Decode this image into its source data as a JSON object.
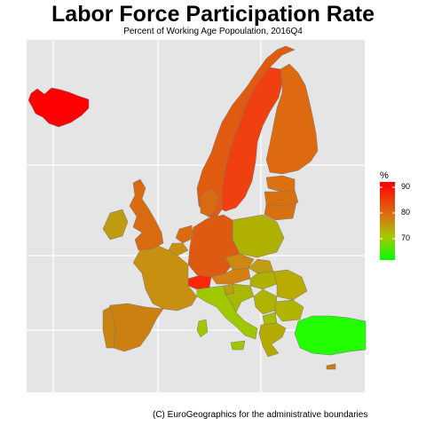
{
  "title": "Labor Force Participation Rate",
  "subtitle": "Percent of Working Age Popoulation, 2016Q4",
  "caption": "(C) EuroGeographics for the administrative boundaries",
  "legend": {
    "title": "%",
    "ticks": [
      "90",
      "80",
      "70"
    ],
    "tick_values": [
      90,
      80,
      70
    ],
    "range": [
      62,
      91
    ],
    "colors": [
      "#00ff00",
      "#ff0000"
    ]
  },
  "panel_color": "#e5e5e5",
  "countries": [
    {
      "name": "Iceland",
      "color": "#ff0000"
    },
    {
      "name": "Sweden",
      "color": "#f04010"
    },
    {
      "name": "Norway",
      "color": "#e05a10"
    },
    {
      "name": "Finland",
      "color": "#dd6a10"
    },
    {
      "name": "Switzerland",
      "color": "#ff2800"
    },
    {
      "name": "Germany",
      "color": "#dd5a10"
    },
    {
      "name": "Denmark",
      "color": "#d86a10"
    },
    {
      "name": "Netherlands",
      "color": "#dd6a10"
    },
    {
      "name": "United Kingdom",
      "color": "#d86a10"
    },
    {
      "name": "Ireland",
      "color": "#c09a10"
    },
    {
      "name": "France",
      "color": "#c89010"
    },
    {
      "name": "Spain",
      "color": "#cc8010"
    },
    {
      "name": "Portugal",
      "color": "#cc8410"
    },
    {
      "name": "Belgium",
      "color": "#c89010"
    },
    {
      "name": "Poland",
      "color": "#b0b000"
    },
    {
      "name": "Estonia",
      "color": "#dd7010"
    },
    {
      "name": "Latvia",
      "color": "#d87010"
    },
    {
      "name": "Lithuania",
      "color": "#d87010"
    },
    {
      "name": "Czechia",
      "color": "#cc8810"
    },
    {
      "name": "Austria",
      "color": "#d48010"
    },
    {
      "name": "Slovakia",
      "color": "#c09c10"
    },
    {
      "name": "Hungary",
      "color": "#b0b000"
    },
    {
      "name": "Slovenia",
      "color": "#c0a000"
    },
    {
      "name": "Croatia",
      "color": "#a8b800"
    },
    {
      "name": "Italy",
      "color": "#a0c800"
    },
    {
      "name": "Romania",
      "color": "#b8aa00"
    },
    {
      "name": "Bulgaria",
      "color": "#b0b400"
    },
    {
      "name": "Greece",
      "color": "#b4aa00"
    },
    {
      "name": "Serbia",
      "color": "#b0b400"
    },
    {
      "name": "Macedonia",
      "color": "#a8bc00"
    },
    {
      "name": "Turkey",
      "color": "#22ff00"
    },
    {
      "name": "Cyprus",
      "color": "#d07810"
    }
  ]
}
